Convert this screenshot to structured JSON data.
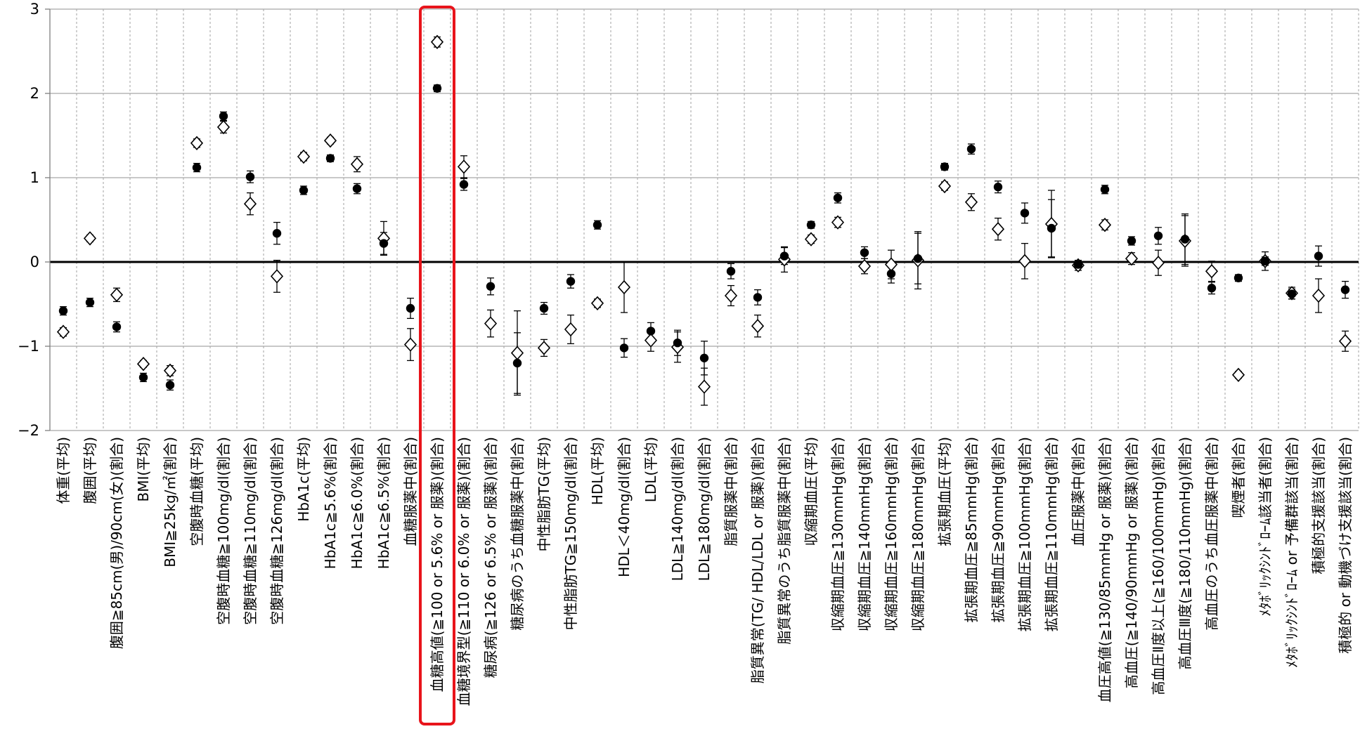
{
  "chart_data": {
    "type": "scatter",
    "grid": true,
    "ylim": [
      -2,
      3
    ],
    "y_ticks": [
      3,
      2,
      1,
      0,
      -1,
      -2
    ],
    "y_tick_labels": [
      "3",
      "2",
      "1",
      "0",
      "−1",
      "−2"
    ],
    "categories": [
      "体重(平均)",
      "腹囲(平均)",
      "腹囲≧85cm(男)/90cm(女)(割合)",
      "BMI(平均)",
      "BMI≧25kg/㎡(割合)",
      "空腹時血糖(平均)",
      "空腹時血糖≧100mg/dl(割合)",
      "空腹時血糖≧110mg/dl(割合)",
      "空腹時血糖≧126mg/dl(割合)",
      "HbA1c(平均)",
      "HbA1c≧5.6%(割合)",
      "HbA1c≧6.0%(割合)",
      "HbA1c≧6.5%(割合)",
      "血糖服薬中(割合)",
      "血糖高値(≧100 or 5.6% or 服薬)(割合)",
      "血糖境界型(≧110 or 6.0% or 服薬)(割合)",
      "糖尿病(≧126 or 6.5% or 服薬)(割合)",
      "糖尿病のうち血糖服薬中(割合)",
      "中性脂肪TG(平均)",
      "中性脂肪TG≧150mg/dl(割合)",
      "HDL(平均)",
      "HDL＜40mg/dl(割合)",
      "LDL(平均)",
      "LDL≧140mg/dl(割合)",
      "LDL≧180mg/dl(割合)",
      "脂質服薬中(割合)",
      "脂質異常(TG/ HDL/LDL or 服薬)(割合)",
      "脂質異常のうち脂質服薬中(割合)",
      "収縮期血圧(平均)",
      "収縮期血圧≧130mmHg(割合)",
      "収縮期血圧≧140mmHg(割合)",
      "収縮期血圧≧160mmHg(割合)",
      "収縮期血圧≧180mmHg(割合)",
      "拡張期血圧(平均)",
      "拡張期血圧≧85mmHg(割合)",
      "拡張期血圧≧90mmHg(割合)",
      "拡張期血圧≧100mmHg(割合)",
      "拡張期血圧≧110mmHg(割合)",
      "血圧服薬中(割合)",
      "血圧高値(≧130/85mmHg or 服薬)(割合)",
      "高血圧(≧140/90mmHg or 服薬)(割合)",
      "高血圧Ⅱ度以上(≧160/100mmHg)(割合)",
      "高血圧Ⅲ度(≧180/110mmHg)(割合)",
      "高血圧のうち血圧服薬中(割合)",
      "喫煙者(割合)",
      "ﾒﾀﾎﾞﾘｯｸｼﾝﾄﾞﾛｰﾑ該当者(割合)",
      "ﾒﾀﾎﾞﾘｯｸｼﾝﾄﾞﾛｰﾑ or 予備群該当(割合)",
      "積極的支援該当(割合)",
      "積極的 or 動機づけ支援該当(割合)"
    ],
    "series": [
      {
        "marker": "circle",
        "color": "#000000",
        "values": [
          -0.58,
          -0.48,
          -0.77,
          -1.37,
          -1.46,
          1.12,
          1.73,
          1.01,
          0.34,
          0.85,
          1.23,
          0.87,
          0.22,
          -0.55,
          2.06,
          0.92,
          -0.29,
          -1.2,
          -0.55,
          -0.23,
          0.44,
          -1.02,
          -0.82,
          -0.96,
          -1.14,
          -0.11,
          -0.42,
          0.07,
          0.44,
          0.76,
          0.11,
          -0.14,
          0.04,
          1.13,
          1.34,
          0.89,
          0.58,
          0.4,
          -0.03,
          0.86,
          0.25,
          0.31,
          0.27,
          -0.31,
          -0.19,
          0.01,
          -0.38,
          0.07,
          -0.33
        ],
        "errors": [
          0.05,
          0.05,
          0.06,
          0.05,
          0.06,
          0.05,
          0.05,
          0.07,
          0.13,
          0.05,
          0.04,
          0.06,
          0.13,
          0.12,
          0.04,
          0.07,
          0.1,
          0.36,
          0.07,
          0.08,
          0.05,
          0.11,
          0.1,
          0.15,
          0.2,
          0.09,
          0.09,
          0.1,
          0.04,
          0.06,
          0.07,
          0.11,
          0.3,
          0.04,
          0.06,
          0.07,
          0.12,
          0.34,
          0.04,
          0.05,
          0.05,
          0.1,
          0.3,
          0.07,
          0.04,
          0.05,
          0.06,
          0.12,
          0.1
        ]
      },
      {
        "marker": "diamond",
        "color": "#000000",
        "fill": "#ffffff",
        "values": [
          -0.83,
          0.28,
          -0.39,
          -1.21,
          -1.29,
          1.41,
          1.6,
          0.69,
          -0.17,
          1.25,
          1.44,
          1.16,
          0.28,
          -0.98,
          2.61,
          1.13,
          -0.73,
          -1.08,
          -1.02,
          -0.8,
          -0.49,
          -0.3,
          -0.93,
          -1.01,
          -1.48,
          -0.4,
          -0.76,
          0.03,
          0.27,
          0.47,
          -0.05,
          -0.03,
          0.02,
          0.9,
          0.71,
          0.39,
          0.01,
          0.45,
          -0.04,
          0.44,
          0.04,
          -0.01,
          0.25,
          -0.11,
          -1.34,
          0.01,
          -0.37,
          -0.4,
          -0.94
        ],
        "errors": [
          0.05,
          0.04,
          0.08,
          0.04,
          0.06,
          0.05,
          0.07,
          0.13,
          0.19,
          0.05,
          0.04,
          0.09,
          0.2,
          0.19,
          0.06,
          0.13,
          0.16,
          0.5,
          0.1,
          0.17,
          0.05,
          0.3,
          0.13,
          0.18,
          0.22,
          0.12,
          0.13,
          0.15,
          0.05,
          0.06,
          0.09,
          0.17,
          0.34,
          0.05,
          0.1,
          0.13,
          0.21,
          0.4,
          0.06,
          0.06,
          0.07,
          0.15,
          0.3,
          0.12,
          0.04,
          0.11,
          0.07,
          0.2,
          0.12
        ]
      }
    ],
    "highlight": {
      "category_index": 14,
      "color": "#e8141b"
    }
  }
}
